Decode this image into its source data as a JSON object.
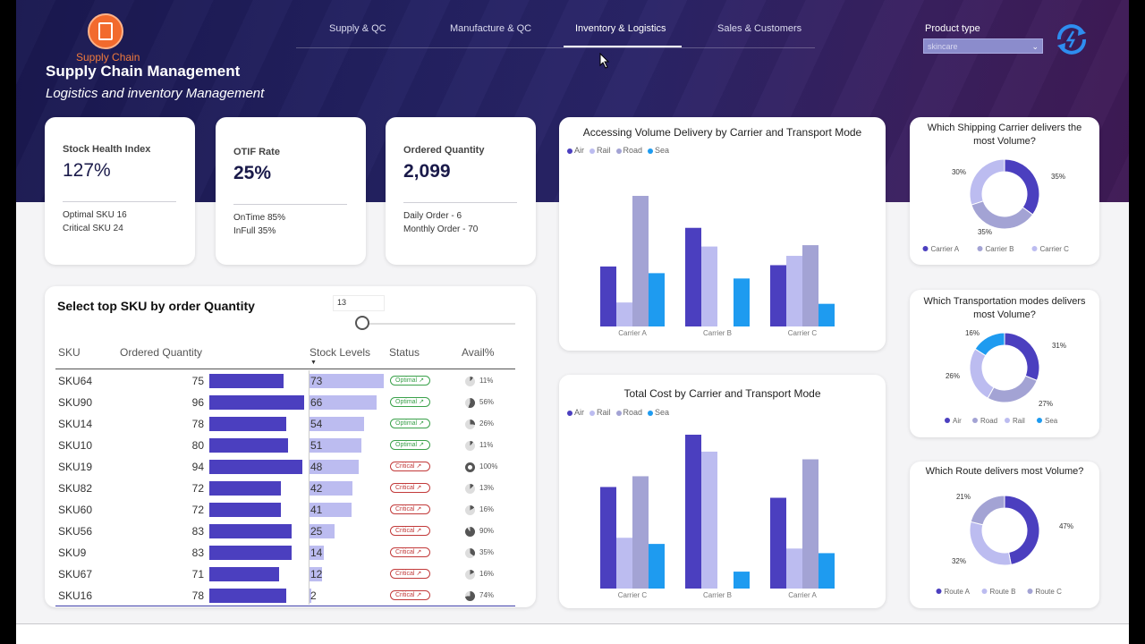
{
  "header": {
    "logo_text": "Supply Chain",
    "title": "Supply Chain Management",
    "subtitle": "Logistics and inventory Management",
    "tabs": [
      "Supply & QC",
      "Manufacture & QC",
      "Inventory & Logistics",
      "Sales & Customers"
    ],
    "active_tab": "Inventory & Logistics",
    "product_type_label": "Product type",
    "product_type_value": "skincare"
  },
  "kpis": {
    "stock": {
      "label": "Stock Health Index",
      "value": "127%",
      "foot1": "Optimal SKU 16",
      "foot2": "Critical SKU 24"
    },
    "otif": {
      "label": "OTIF Rate",
      "value": "25%",
      "foot1": "OnTime 85%",
      "foot2": "InFull 35%"
    },
    "ordered": {
      "label": "Ordered Quantity",
      "value": "2,099",
      "foot1": "Daily Order - 6",
      "foot2": "Monthly Order - 70"
    }
  },
  "colors": {
    "air": "#4b3fbf",
    "rail": "#bcbcf0",
    "road": "#a3a3d4",
    "sea": "#1e9bf0",
    "accent": "#2e8df0"
  },
  "sku_table": {
    "title": "Select top SKU by order Quantity",
    "slider_value": "13",
    "headers": {
      "sku": "SKU",
      "qty": "Ordered Quantity",
      "stock": "Stock Levels",
      "status": "Status",
      "avail": "Avail%"
    },
    "max_qty": 96,
    "max_stock": 73,
    "rows": [
      {
        "sku": "SKU64",
        "qty": "75",
        "stock": "73",
        "status": "Optimal",
        "avail": "11%",
        "avail_frac": 0.11
      },
      {
        "sku": "SKU90",
        "qty": "96",
        "stock": "66",
        "status": "Optimal",
        "avail": "56%",
        "avail_frac": 0.56
      },
      {
        "sku": "SKU14",
        "qty": "78",
        "stock": "54",
        "status": "Optimal",
        "avail": "26%",
        "avail_frac": 0.26
      },
      {
        "sku": "SKU10",
        "qty": "80",
        "stock": "51",
        "status": "Optimal",
        "avail": "11%",
        "avail_frac": 0.11
      },
      {
        "sku": "SKU19",
        "qty": "94",
        "stock": "48",
        "status": "Critical",
        "avail": "100%",
        "avail_frac": 1.0
      },
      {
        "sku": "SKU82",
        "qty": "72",
        "stock": "42",
        "status": "Critical",
        "avail": "13%",
        "avail_frac": 0.13
      },
      {
        "sku": "SKU60",
        "qty": "72",
        "stock": "41",
        "status": "Critical",
        "avail": "16%",
        "avail_frac": 0.16
      },
      {
        "sku": "SKU56",
        "qty": "83",
        "stock": "25",
        "status": "Critical",
        "avail": "90%",
        "avail_frac": 0.9
      },
      {
        "sku": "SKU9",
        "qty": "83",
        "stock": "14",
        "status": "Critical",
        "avail": "35%",
        "avail_frac": 0.35
      },
      {
        "sku": "SKU67",
        "qty": "71",
        "stock": "12",
        "status": "Critical",
        "avail": "16%",
        "avail_frac": 0.16
      },
      {
        "sku": "SKU16",
        "qty": "78",
        "stock": "2",
        "status": "Critical",
        "avail": "74%",
        "avail_frac": 0.74
      }
    ]
  },
  "chart_data": [
    {
      "type": "bar",
      "title": "Accessing Volume Delivery by Carrier and Transport Mode",
      "categories": [
        "Carrier A",
        "Carrier B",
        "Carrier C"
      ],
      "legend": [
        "Air",
        "Rail",
        "Road",
        "Sea"
      ],
      "ylim": [
        0,
        100
      ],
      "series": [
        {
          "name": "Air",
          "values": [
            45,
            74,
            46
          ]
        },
        {
          "name": "Rail",
          "values": [
            18,
            60,
            53
          ]
        },
        {
          "name": "Road",
          "values": [
            98,
            0,
            61
          ]
        },
        {
          "name": "Sea",
          "values": [
            40,
            36,
            17
          ]
        }
      ]
    },
    {
      "type": "bar",
      "title": "Total Cost by Carrier and Transport Mode",
      "categories": [
        "Carrier C",
        "Carrier B",
        "Carrier A"
      ],
      "legend": [
        "Air",
        "Rail",
        "Road",
        "Sea"
      ],
      "ylim": [
        0,
        100
      ],
      "series": [
        {
          "name": "Air",
          "values": [
            66,
            100,
            59
          ]
        },
        {
          "name": "Rail",
          "values": [
            33,
            89,
            26
          ]
        },
        {
          "name": "Road",
          "values": [
            73,
            0,
            84
          ]
        },
        {
          "name": "Sea",
          "values": [
            29,
            11,
            23
          ]
        }
      ]
    },
    {
      "type": "pie",
      "title": "Which Shipping Carrier delivers the most Volume?",
      "labels": [
        "Carrier A",
        "Carrier B",
        "Carrier C"
      ],
      "values": [
        35,
        35,
        30
      ],
      "value_labels": [
        "35%",
        "35%",
        "30%"
      ]
    },
    {
      "type": "pie",
      "title": "Which Transportation modes delivers most Volume?",
      "labels": [
        "Air",
        "Road",
        "Rail",
        "Sea"
      ],
      "values": [
        31,
        27,
        26,
        16
      ],
      "value_labels": [
        "31%",
        "27%",
        "26%",
        "16%"
      ]
    },
    {
      "type": "pie",
      "title": "Which Route delivers most Volume?",
      "labels": [
        "Route A",
        "Route B",
        "Route C"
      ],
      "values": [
        47,
        32,
        21
      ],
      "value_labels": [
        "47%",
        "32%",
        "21%"
      ]
    }
  ]
}
